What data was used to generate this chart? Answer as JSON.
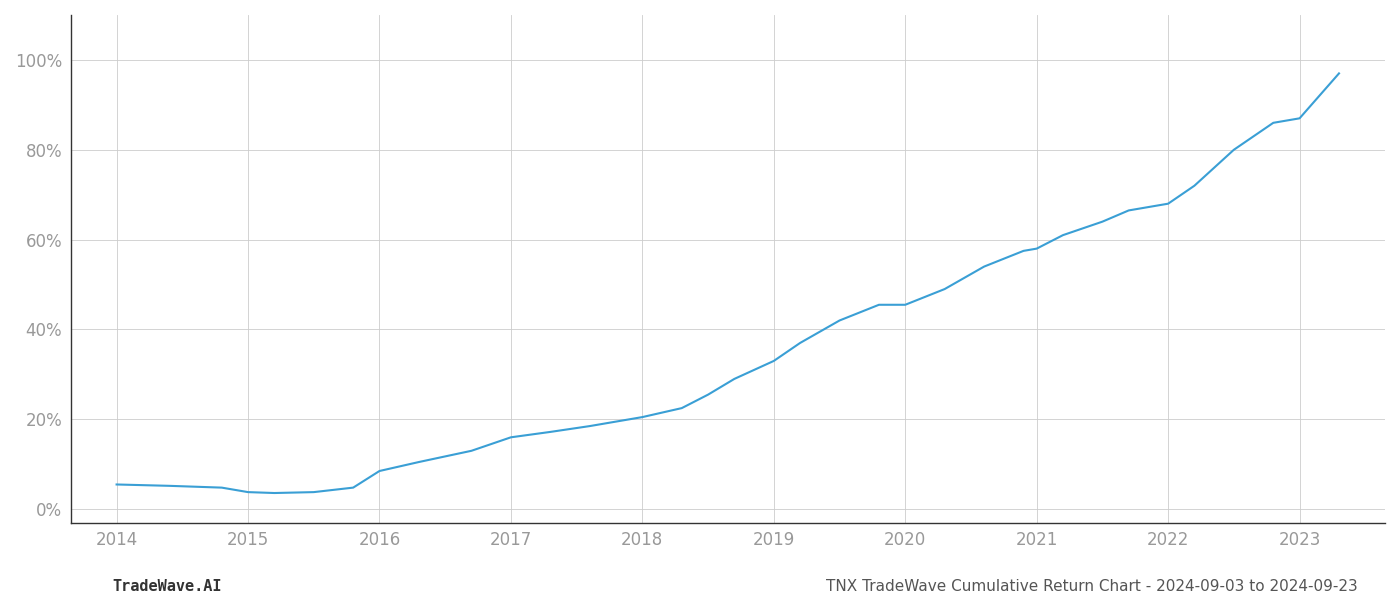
{
  "x_years": [
    2014.0,
    2014.4,
    2014.8,
    2015.0,
    2015.2,
    2015.5,
    2015.8,
    2016.0,
    2016.3,
    2016.7,
    2017.0,
    2017.3,
    2017.6,
    2017.9,
    2018.0,
    2018.15,
    2018.3,
    2018.5,
    2018.7,
    2018.85,
    2019.0,
    2019.2,
    2019.5,
    2019.8,
    2020.0,
    2020.3,
    2020.6,
    2020.9,
    2021.0,
    2021.2,
    2021.5,
    2021.7,
    2022.0,
    2022.2,
    2022.5,
    2022.8,
    2023.0,
    2023.3
  ],
  "y_values": [
    0.055,
    0.052,
    0.048,
    0.038,
    0.036,
    0.038,
    0.048,
    0.085,
    0.105,
    0.13,
    0.16,
    0.172,
    0.185,
    0.2,
    0.205,
    0.215,
    0.225,
    0.255,
    0.29,
    0.31,
    0.33,
    0.37,
    0.42,
    0.455,
    0.455,
    0.49,
    0.54,
    0.575,
    0.58,
    0.61,
    0.64,
    0.665,
    0.68,
    0.72,
    0.8,
    0.86,
    0.87,
    0.97
  ],
  "line_color": "#3a9fd5",
  "line_width": 1.5,
  "background_color": "#ffffff",
  "grid_color": "#cccccc",
  "grid_linewidth": 0.6,
  "footer_left": "TradeWave.AI",
  "footer_right": "TNX TradeWave Cumulative Return Chart - 2024-09-03 to 2024-09-23",
  "xlim": [
    2013.65,
    2023.65
  ],
  "ylim": [
    -0.03,
    1.1
  ],
  "yticks": [
    0.0,
    0.2,
    0.4,
    0.6,
    0.8,
    1.0
  ],
  "ytick_labels": [
    "0%",
    "20%",
    "40%",
    "60%",
    "80%",
    "100%"
  ],
  "xticks": [
    2014,
    2015,
    2016,
    2017,
    2018,
    2019,
    2020,
    2021,
    2022,
    2023
  ],
  "xtick_labels": [
    "2014",
    "2015",
    "2016",
    "2017",
    "2018",
    "2019",
    "2020",
    "2021",
    "2022",
    "2023"
  ],
  "tick_label_color": "#999999",
  "tick_label_fontsize": 12,
  "footer_fontsize": 11,
  "footer_left_color": "#333333",
  "footer_right_color": "#555555",
  "spine_color": "#333333"
}
